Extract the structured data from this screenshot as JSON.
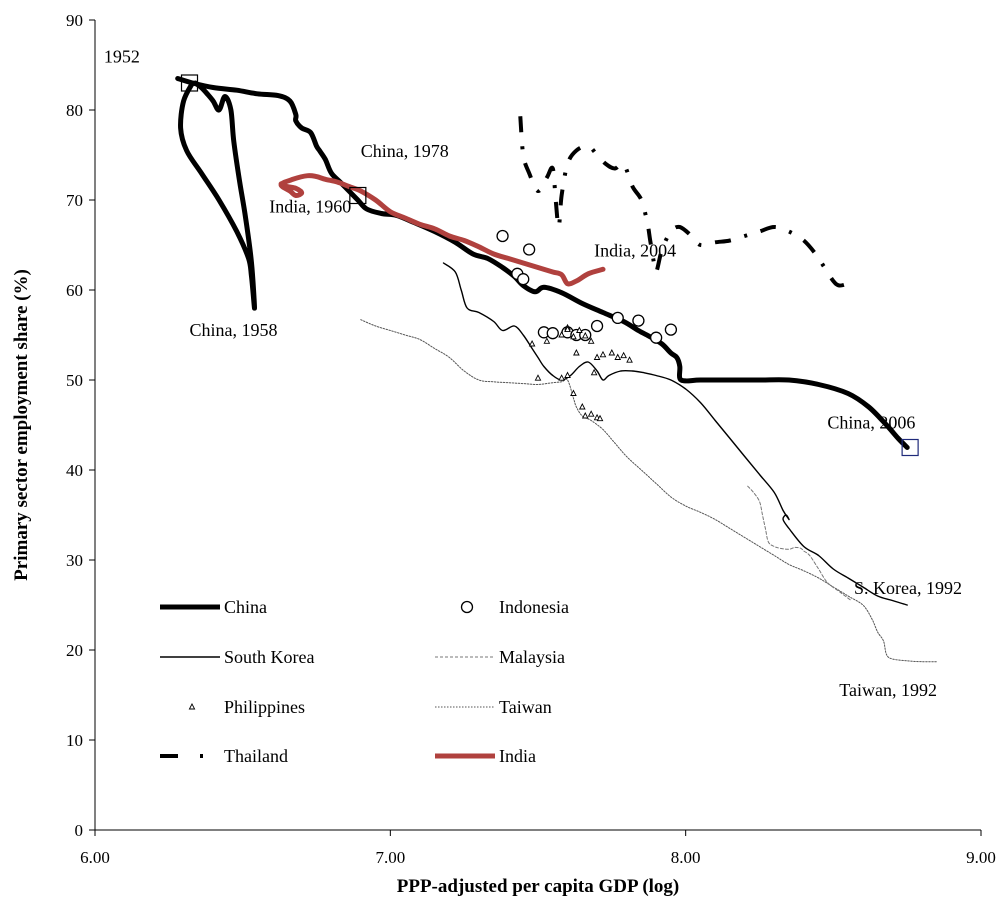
{
  "chart_data": {
    "type": "line",
    "xlabel": "PPP-adjusted  per capita GDP (log)",
    "ylabel": "Primary sector employment share (%)",
    "xlim": [
      6.0,
      9.0
    ],
    "ylim": [
      0,
      90
    ],
    "x_ticks": [
      "6.00",
      "7.00",
      "8.00",
      "9.00"
    ],
    "y_ticks": [
      "0",
      "10",
      "20",
      "30",
      "40",
      "50",
      "60",
      "70",
      "80",
      "90"
    ],
    "grid": false,
    "legend_position": "bottom-left",
    "colors": {
      "india": "#b0413e",
      "highlight_box": "#1f2a7a",
      "axis": "#000000"
    },
    "series": [
      {
        "name": "China",
        "style": "thick-solid",
        "color": "#000000",
        "x": [
          6.28,
          6.33,
          6.4,
          6.48,
          6.55,
          6.62,
          6.66,
          6.68,
          6.68,
          6.7,
          6.73,
          6.75,
          6.76,
          6.78,
          6.8,
          6.83,
          6.86,
          6.89,
          6.92,
          6.97,
          7.02,
          7.08,
          7.15,
          7.22,
          7.28,
          7.33,
          7.38,
          7.42,
          7.45,
          7.49,
          7.52,
          7.58,
          7.65,
          7.72,
          7.79,
          7.84,
          7.88,
          7.92,
          7.95,
          7.97,
          7.98,
          7.98,
          8.0,
          8.05,
          8.15,
          8.25,
          8.35,
          8.45,
          8.55,
          8.62,
          8.68,
          8.72,
          8.75
        ],
        "y": [
          83.5,
          83.0,
          82.5,
          82.2,
          81.8,
          81.6,
          81.0,
          79.5,
          78.8,
          78.0,
          77.5,
          76.0,
          75.5,
          74.5,
          73.0,
          72.0,
          71.0,
          70.0,
          69.0,
          68.5,
          68.3,
          67.5,
          66.5,
          65.3,
          64.0,
          63.5,
          62.5,
          61.5,
          60.5,
          59.8,
          60.3,
          59.7,
          58.5,
          57.5,
          56.5,
          55.5,
          54.8,
          54.0,
          53.0,
          52.5,
          51.5,
          50.2,
          49.9,
          50.0,
          50.0,
          50.0,
          50.0,
          49.5,
          48.5,
          47.0,
          45.0,
          43.5,
          42.5
        ]
      },
      {
        "name": "China",
        "style": "thick-solid",
        "color": "#000000",
        "x": [
          6.33,
          6.3,
          6.29,
          6.31,
          6.36,
          6.42,
          6.48,
          6.52,
          6.53,
          6.54,
          6.53,
          6.51,
          6.49,
          6.47,
          6.46,
          6.44,
          6.42,
          6.4,
          6.38,
          6.36,
          6.34
        ],
        "y": [
          83.0,
          81.0,
          78.0,
          75.5,
          73.0,
          70.0,
          66.5,
          63.5,
          61.5,
          58.0,
          63.0,
          68.0,
          72.0,
          76.5,
          80.0,
          81.5,
          80.0,
          81.0,
          81.8,
          82.5,
          83.0
        ]
      },
      {
        "name": "South Korea",
        "style": "thin-solid",
        "color": "#000000",
        "x": [
          7.18,
          7.22,
          7.24,
          7.26,
          7.3,
          7.35,
          7.38,
          7.42,
          7.45,
          7.48,
          7.5,
          7.52,
          7.55,
          7.58,
          7.61,
          7.64,
          7.67,
          7.7,
          7.72,
          7.74,
          7.78,
          7.82,
          7.86,
          7.9,
          7.95,
          8.0,
          8.05,
          8.1,
          8.15,
          8.2,
          8.25,
          8.3,
          8.33,
          8.35,
          8.34,
          8.33,
          8.35,
          8.4,
          8.45,
          8.5,
          8.55,
          8.6,
          8.65,
          8.7,
          8.75
        ],
        "y": [
          63.0,
          62.0,
          60.0,
          58.0,
          57.5,
          56.5,
          55.5,
          56.0,
          55.0,
          53.5,
          52.5,
          51.5,
          50.5,
          50.0,
          50.5,
          51.5,
          52.0,
          51.0,
          50.0,
          50.5,
          51.0,
          51.0,
          50.8,
          50.5,
          50.0,
          49.0,
          47.5,
          45.5,
          43.5,
          41.5,
          39.5,
          37.5,
          35.5,
          34.5,
          35.0,
          34.5,
          33.5,
          31.5,
          30.5,
          29.0,
          28.0,
          27.0,
          26.0,
          25.5,
          25.0
        ]
      },
      {
        "name": "Taiwan",
        "style": "thin-dotted",
        "color": "#555555",
        "x": [
          6.9,
          6.95,
          7.0,
          7.05,
          7.1,
          7.15,
          7.2,
          7.25,
          7.3,
          7.35,
          7.4,
          7.45,
          7.5,
          7.55,
          7.58,
          7.6,
          7.62,
          7.63,
          7.65,
          7.68,
          7.72,
          7.76,
          7.8,
          7.85,
          7.9,
          7.95,
          8.0,
          8.05,
          8.1,
          8.15,
          8.2,
          8.25,
          8.3,
          8.35,
          8.4,
          8.45,
          8.5,
          8.55,
          8.6,
          8.63,
          8.65,
          8.67,
          8.68,
          8.7,
          8.75,
          8.8,
          8.85
        ],
        "y": [
          56.7,
          56.0,
          55.5,
          55.0,
          54.5,
          53.5,
          52.5,
          51.0,
          50.0,
          49.8,
          49.7,
          49.6,
          49.5,
          49.7,
          49.8,
          50.0,
          48.0,
          47.0,
          46.0,
          45.5,
          44.5,
          43.0,
          41.5,
          40.0,
          38.5,
          37.0,
          36.0,
          35.3,
          34.5,
          33.5,
          32.5,
          31.5,
          30.5,
          29.5,
          28.8,
          28.0,
          27.0,
          26.0,
          25.0,
          23.5,
          22.0,
          21.0,
          19.5,
          19.0,
          18.8,
          18.7,
          18.7
        ]
      },
      {
        "name": "Malaysia",
        "style": "thin-dashed",
        "color": "#777777",
        "x": [
          8.21,
          8.23,
          8.25,
          8.26,
          8.27,
          8.28,
          8.3,
          8.32,
          8.35,
          8.37,
          8.39,
          8.4,
          8.42,
          8.45,
          8.48,
          8.52,
          8.56
        ],
        "y": [
          38.2,
          37.5,
          36.5,
          35.0,
          33.5,
          32.0,
          31.5,
          31.3,
          31.2,
          31.4,
          31.3,
          31.0,
          30.5,
          29.0,
          27.5,
          26.5,
          25.5
        ]
      },
      {
        "name": "India",
        "style": "thick-solid",
        "color": "#b0413e",
        "x": [
          6.63,
          6.65,
          6.68,
          6.7,
          6.68,
          6.66,
          6.63,
          6.67,
          6.72,
          6.75,
          6.78,
          6.82,
          6.86,
          6.9,
          6.95,
          7.0,
          7.05,
          7.1,
          7.15,
          7.2,
          7.25,
          7.3,
          7.35,
          7.4,
          7.45,
          7.5,
          7.55,
          7.58,
          7.6,
          7.63,
          7.67,
          7.72
        ],
        "y": [
          71.8,
          71.5,
          71.3,
          70.8,
          70.5,
          71.0,
          71.7,
          72.3,
          72.7,
          72.6,
          72.3,
          72.0,
          71.5,
          71.0,
          70.0,
          68.7,
          68.0,
          67.3,
          66.8,
          66.0,
          65.5,
          64.8,
          64.0,
          63.5,
          63.0,
          62.5,
          62.0,
          61.7,
          60.7,
          61.0,
          61.8,
          62.3
        ]
      },
      {
        "name": "Thailand",
        "style": "dash-dot",
        "color": "#000000",
        "x": [
          7.44,
          7.45,
          7.47,
          7.5,
          7.53,
          7.55,
          7.56,
          7.57,
          7.58,
          7.6,
          7.63,
          7.67,
          7.7,
          7.73,
          7.76,
          7.79,
          7.82,
          7.85,
          7.87,
          7.88,
          7.89,
          7.9,
          7.92,
          7.95,
          7.98,
          8.02,
          8.05,
          8.1,
          8.15,
          8.2,
          8.25,
          8.3,
          8.35,
          8.4,
          8.44,
          8.47,
          8.5,
          8.52,
          8.55,
          8.58
        ],
        "y": [
          79.3,
          75.0,
          73.0,
          71.0,
          72.5,
          73.5,
          70.0,
          67.0,
          70.5,
          74.0,
          75.5,
          76.0,
          75.0,
          74.0,
          73.5,
          74.0,
          71.5,
          70.0,
          67.5,
          65.5,
          63.5,
          62.0,
          64.5,
          66.5,
          67.0,
          66.0,
          65.0,
          65.3,
          65.5,
          66.0,
          66.5,
          67.0,
          66.5,
          65.5,
          64.0,
          62.5,
          61.0,
          60.5,
          60.7,
          61.0
        ]
      },
      {
        "name": "Indonesia",
        "style": "open-circle",
        "color": "#000000",
        "x": [
          7.38,
          7.43,
          7.45,
          7.47,
          7.52,
          7.55,
          7.6,
          7.63,
          7.66,
          7.7,
          7.77,
          7.84,
          7.9,
          7.95
        ],
        "y": [
          66.0,
          61.8,
          61.2,
          64.5,
          55.3,
          55.2,
          55.3,
          55.0,
          55.0,
          56.0,
          56.9,
          56.6,
          54.7,
          55.6
        ]
      },
      {
        "name": "Philippines",
        "style": "triangle",
        "color": "#000000",
        "x": [
          7.48,
          7.5,
          7.53,
          7.58,
          7.6,
          7.62,
          7.64,
          7.66,
          7.68,
          7.7,
          7.72,
          7.75,
          7.77,
          7.79,
          7.81,
          7.58,
          7.6,
          7.62,
          7.65,
          7.66,
          7.68,
          7.7,
          7.71,
          7.63,
          7.69,
          7.6
        ],
        "y": [
          54.0,
          50.2,
          54.3,
          55.0,
          55.8,
          54.8,
          55.5,
          54.9,
          54.3,
          52.5,
          52.8,
          53.0,
          52.5,
          52.7,
          52.2,
          50.2,
          50.5,
          48.5,
          47.0,
          46.0,
          46.2,
          45.8,
          45.7,
          53.0,
          50.8,
          55.6
        ]
      }
    ],
    "annotations": [
      {
        "text": "1952",
        "x": 6.03,
        "y": 85.3
      },
      {
        "text": "China, 1978",
        "x": 6.9,
        "y": 74.8
      },
      {
        "text": "India, 1960",
        "x": 6.59,
        "y": 68.6
      },
      {
        "text": "India, 2004",
        "x": 7.69,
        "y": 63.7
      },
      {
        "text": "China, 1958",
        "x": 6.32,
        "y": 54.9
      },
      {
        "text": "China, 2006",
        "x": 8.48,
        "y": 44.6
      },
      {
        "text": "S. Korea, 1992",
        "x": 8.57,
        "y": 26.2
      },
      {
        "text": "Taiwan, 1992",
        "x": 8.52,
        "y": 14.9
      }
    ],
    "highlight_boxes": [
      {
        "x": 6.32,
        "y": 83.0
      },
      {
        "x": 6.89,
        "y": 70.5
      },
      {
        "x": 8.76,
        "y": 42.5
      }
    ],
    "legend": [
      {
        "label": "China",
        "marker": "thick-solid",
        "color": "#000000",
        "row": 0,
        "col": 0
      },
      {
        "label": "Indonesia",
        "marker": "open-circle",
        "color": "#000000",
        "row": 0,
        "col": 1
      },
      {
        "label": "South Korea",
        "marker": "thin-solid",
        "color": "#000000",
        "row": 1,
        "col": 0
      },
      {
        "label": "Malaysia",
        "marker": "thin-dashed",
        "color": "#777777",
        "row": 1,
        "col": 1
      },
      {
        "label": "Philippines",
        "marker": "triangle",
        "color": "#000000",
        "row": 2,
        "col": 0
      },
      {
        "label": "Taiwan",
        "marker": "thin-dotted",
        "color": "#555555",
        "row": 2,
        "col": 1
      },
      {
        "label": "Thailand",
        "marker": "dash-dot",
        "color": "#000000",
        "row": 3,
        "col": 0
      },
      {
        "label": "India",
        "marker": "thick-solid",
        "color": "#b0413e",
        "row": 3,
        "col": 1
      }
    ]
  }
}
